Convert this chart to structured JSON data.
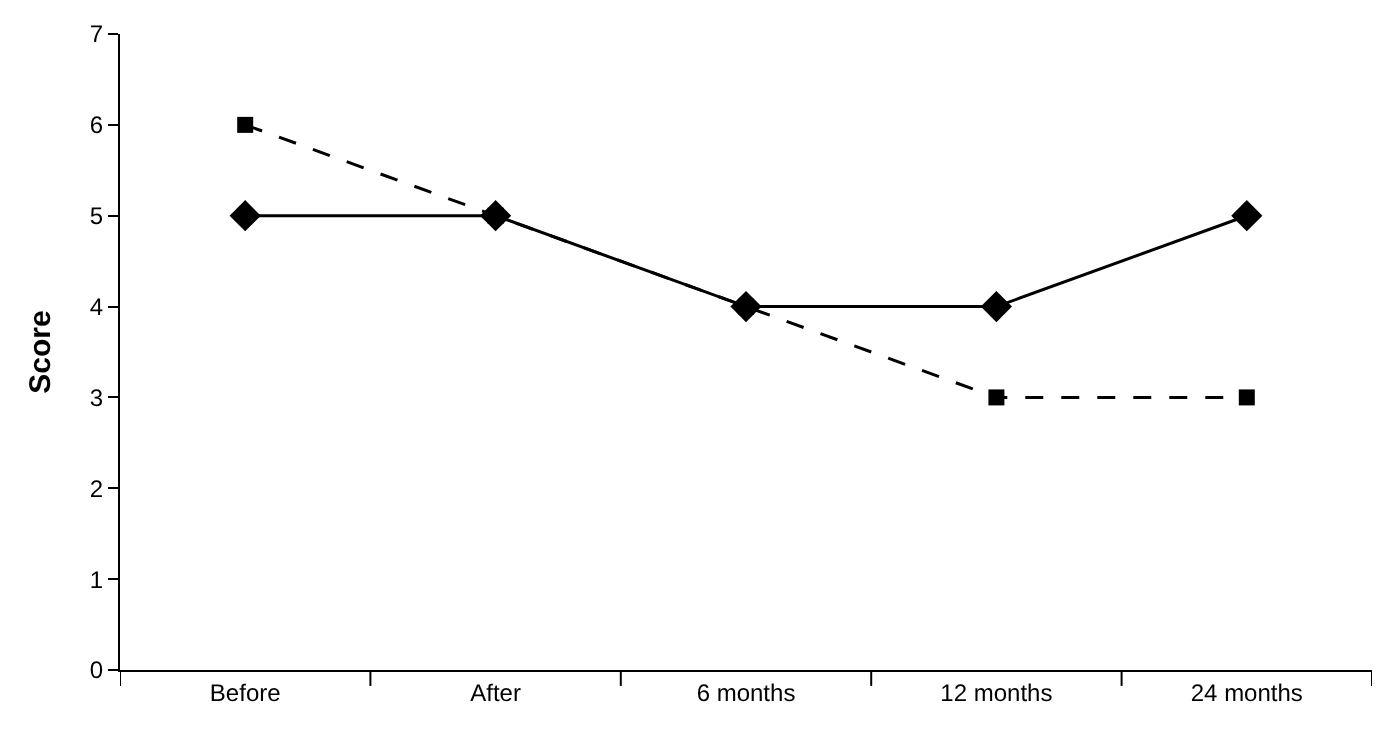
{
  "chart_data": {
    "type": "line",
    "ylabel": "Score",
    "categories": [
      "Before",
      "After",
      "6 months",
      "12 months",
      "24 months"
    ],
    "series": [
      {
        "color": "#000000",
        "marker": "diamond",
        "line_style": "solid",
        "values": [
          5,
          5,
          4,
          4,
          5
        ]
      },
      {
        "color": "#000000",
        "marker": "square",
        "line_style": "dashed",
        "values": [
          6,
          5,
          4,
          3,
          3
        ]
      }
    ],
    "ylim": [
      0,
      7
    ],
    "yticks": [
      0,
      1,
      2,
      3,
      4,
      5,
      6,
      7
    ]
  }
}
